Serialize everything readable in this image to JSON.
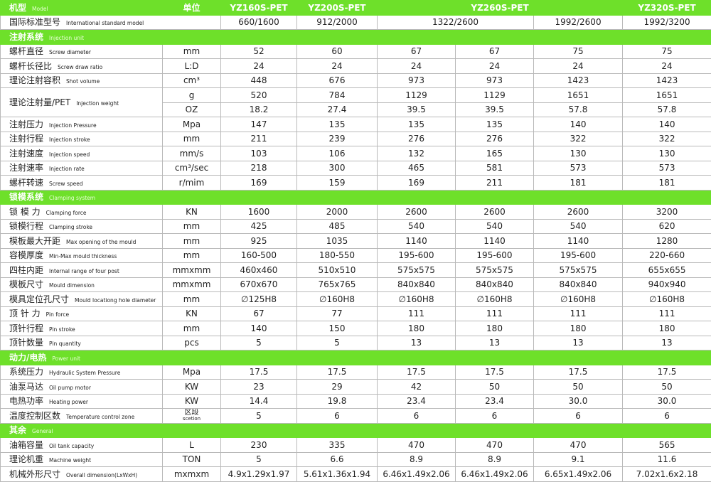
{
  "header": {
    "model_cn": "机型",
    "model_en": "Model",
    "unit": "单位",
    "models": [
      "YZ160S-PET",
      "YZ200S-PET",
      "YZ260S-PET",
      "YZ320S-PET"
    ]
  },
  "standard_row": {
    "label_cn": "国际标准型号",
    "label_en": "International standard model",
    "values": [
      "660/1600",
      "912/2000",
      "1322/2600",
      "1992/2600",
      "1992/3200"
    ]
  },
  "sections": [
    {
      "title_cn": "注射系统",
      "title_en": "Injection unit",
      "rows": [
        {
          "label_cn": "螺杆直径",
          "label_en": "Screw diameter",
          "unit": "mm",
          "values": [
            "52",
            "60",
            "67",
            "67",
            "75",
            "75"
          ]
        },
        {
          "label_cn": "螺杆长径比",
          "label_en": "Screw draw ratio",
          "unit": "L:D",
          "values": [
            "24",
            "24",
            "24",
            "24",
            "24",
            "24"
          ]
        },
        {
          "label_cn": "理论注射容积",
          "label_en": "Shot volume",
          "unit": "cm³",
          "values": [
            "448",
            "676",
            "973",
            "973",
            "1423",
            "1423"
          ]
        },
        {
          "label_cn": "理论注射量/PET",
          "label_en": "Injection weight",
          "sub_rows": [
            {
              "unit": "g",
              "values": [
                "520",
                "784",
                "1129",
                "1129",
                "1651",
                "1651"
              ]
            },
            {
              "unit": "OZ",
              "values": [
                "18.2",
                "27.4",
                "39.5",
                "39.5",
                "57.8",
                "57.8"
              ]
            }
          ]
        },
        {
          "label_cn": "注射压力",
          "label_en": "Injection Pressure",
          "unit": "Mpa",
          "values": [
            "147",
            "135",
            "135",
            "135",
            "140",
            "140"
          ]
        },
        {
          "label_cn": "注射行程",
          "label_en": "Injection stroke",
          "unit": "mm",
          "values": [
            "211",
            "239",
            "276",
            "276",
            "322",
            "322"
          ]
        },
        {
          "label_cn": "注射速度",
          "label_en": "Injection speed",
          "unit": "mm/s",
          "values": [
            "103",
            "106",
            "132",
            "165",
            "130",
            "130"
          ]
        },
        {
          "label_cn": "注射速率",
          "label_en": "Injection rate",
          "unit": "cm³/sec",
          "values": [
            "218",
            "300",
            "465",
            "581",
            "573",
            "573"
          ]
        },
        {
          "label_cn": "螺杆转速",
          "label_en": "Screw speed",
          "unit": "r/mim",
          "values": [
            "169",
            "159",
            "169",
            "211",
            "181",
            "181"
          ]
        }
      ]
    },
    {
      "title_cn": "锁模系统",
      "title_en": "Clamping system",
      "rows": [
        {
          "label_cn": "锁 模 力",
          "label_en": "Clamping force",
          "unit": "KN",
          "values": [
            "1600",
            "2000",
            "2600",
            "2600",
            "2600",
            "3200"
          ]
        },
        {
          "label_cn": "锁模行程",
          "label_en": "Clamping stroke",
          "unit": "mm",
          "values": [
            "425",
            "485",
            "540",
            "540",
            "540",
            "620"
          ]
        },
        {
          "label_cn": "模板最大开距",
          "label_en": "Max opening of the mould",
          "unit": "mm",
          "values": [
            "925",
            "1035",
            "1140",
            "1140",
            "1140",
            "1280"
          ]
        },
        {
          "label_cn": "容模厚度",
          "label_en": "Min-Max mould thickness",
          "unit": "mm",
          "values": [
            "160-500",
            "180-550",
            "195-600",
            "195-600",
            "195-600",
            "220-660"
          ]
        },
        {
          "label_cn": "四柱内距",
          "label_en": "Internal range of four post",
          "unit": "mmxmm",
          "values": [
            "460x460",
            "510x510",
            "575x575",
            "575x575",
            "575x575",
            "655x655"
          ]
        },
        {
          "label_cn": "模板尺寸",
          "label_en": "Mould dimension",
          "unit": "mmxmm",
          "values": [
            "670x670",
            "765x765",
            "840x840",
            "840x840",
            "840x840",
            "940x940"
          ]
        },
        {
          "label_cn": "模具定位孔尺寸",
          "label_en": "Mould locationg hole diameter",
          "unit": "mm",
          "values": [
            "∅125H8",
            "∅160H8",
            "∅160H8",
            "∅160H8",
            "∅160H8",
            "∅160H8"
          ]
        },
        {
          "label_cn": "顶 针 力",
          "label_en": "Pin force",
          "unit": "KN",
          "values": [
            "67",
            "77",
            "111",
            "111",
            "111",
            "111"
          ]
        },
        {
          "label_cn": "顶针行程",
          "label_en": "Pin stroke",
          "unit": "mm",
          "values": [
            "140",
            "150",
            "180",
            "180",
            "180",
            "180"
          ]
        },
        {
          "label_cn": "顶针数量",
          "label_en": "Pin quantity",
          "unit": "pcs",
          "values": [
            "5",
            "5",
            "13",
            "13",
            "13",
            "13"
          ]
        }
      ]
    },
    {
      "title_cn": "动力/电热",
      "title_en": "Power unit",
      "rows": [
        {
          "label_cn": "系统压力",
          "label_en": "Hydraulic System Pressure",
          "unit": "Mpa",
          "values": [
            "17.5",
            "17.5",
            "17.5",
            "17.5",
            "17.5",
            "17.5"
          ]
        },
        {
          "label_cn": "油泵马达",
          "label_en": "Oil pump motor",
          "unit": "KW",
          "values": [
            "23",
            "29",
            "42",
            "50",
            "50",
            "50"
          ]
        },
        {
          "label_cn": "电热功率",
          "label_en": "Heating power",
          "unit": "KW",
          "values": [
            "14.4",
            "19.8",
            "23.4",
            "23.4",
            "30.0",
            "30.0"
          ]
        },
        {
          "label_cn": "温度控制区数",
          "label_en": "Temperature control zone",
          "unit": "区段",
          "unit_en": "scetion",
          "values": [
            "5",
            "6",
            "6",
            "6",
            "6",
            "6"
          ]
        }
      ]
    },
    {
      "title_cn": "其余",
      "title_en": "General",
      "rows": [
        {
          "label_cn": "油箱容量",
          "label_en": "Oil tank capacity",
          "unit": "L",
          "values": [
            "230",
            "335",
            "470",
            "470",
            "470",
            "565"
          ]
        },
        {
          "label_cn": "理论机重",
          "label_en": "Machine weight",
          "unit": "TON",
          "values": [
            "5",
            "6.6",
            "8.9",
            "8.9",
            "9.1",
            "11.6"
          ]
        },
        {
          "label_cn": "机械外形尺寸",
          "label_en": "Overall dimension(LxWxH)",
          "unit": "mxmxm",
          "values": [
            "4.9x1.29x1.97",
            "5.61x1.36x1.94",
            "6.46x1.49x2.06",
            "6.46x1.49x2.06",
            "6.65x1.49x2.06",
            "7.02x1.6x2.18"
          ]
        }
      ]
    }
  ]
}
